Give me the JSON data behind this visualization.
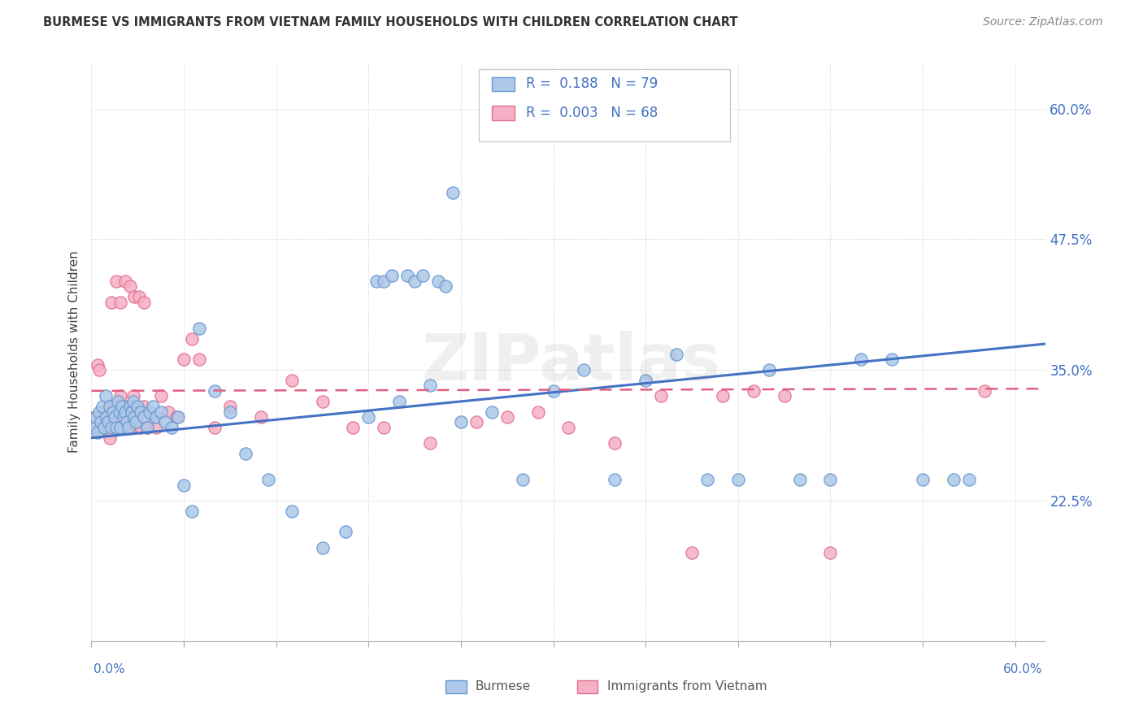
{
  "title": "BURMESE VS IMMIGRANTS FROM VIETNAM FAMILY HOUSEHOLDS WITH CHILDREN CORRELATION CHART",
  "source": "Source: ZipAtlas.com",
  "ylabel": "Family Households with Children",
  "xlim": [
    0.0,
    0.62
  ],
  "ylim": [
    0.09,
    0.645
  ],
  "burmese_color": "#adc8e8",
  "burmese_edge_color": "#6898d0",
  "vietnam_color": "#f5b0c5",
  "vietnam_edge_color": "#e07090",
  "burmese_line_color": "#4472c4",
  "vietnam_line_color": "#e06080",
  "legend_R_burmese": "0.188",
  "legend_N_burmese": "79",
  "legend_R_vietnam": "0.003",
  "legend_N_vietnam": "68",
  "legend_label_burmese": "Burmese",
  "legend_label_vietnam": "Immigrants from Vietnam",
  "burmese_trend_y0": 0.285,
  "burmese_trend_y1": 0.375,
  "vietnam_trend_y0": 0.33,
  "vietnam_trend_y1": 0.332,
  "ytick_vals": [
    0.225,
    0.35,
    0.475,
    0.6
  ],
  "ytick_labels": [
    "22.5%",
    "35.0%",
    "47.5%",
    "60.0%"
  ],
  "burmese_x": [
    0.002,
    0.003,
    0.004,
    0.005,
    0.006,
    0.007,
    0.008,
    0.009,
    0.01,
    0.011,
    0.012,
    0.013,
    0.014,
    0.015,
    0.016,
    0.017,
    0.018,
    0.019,
    0.02,
    0.021,
    0.022,
    0.023,
    0.024,
    0.025,
    0.026,
    0.027,
    0.028,
    0.029,
    0.03,
    0.032,
    0.034,
    0.036,
    0.038,
    0.04,
    0.042,
    0.045,
    0.048,
    0.052,
    0.056,
    0.06,
    0.065,
    0.07,
    0.08,
    0.09,
    0.1,
    0.115,
    0.13,
    0.15,
    0.165,
    0.18,
    0.2,
    0.22,
    0.24,
    0.26,
    0.28,
    0.3,
    0.32,
    0.34,
    0.36,
    0.38,
    0.4,
    0.42,
    0.44,
    0.46,
    0.48,
    0.5,
    0.52,
    0.54,
    0.56,
    0.57,
    0.185,
    0.19,
    0.195,
    0.205,
    0.21,
    0.215,
    0.225,
    0.23,
    0.235
  ],
  "burmese_y": [
    0.295,
    0.305,
    0.29,
    0.31,
    0.3,
    0.315,
    0.295,
    0.325,
    0.305,
    0.3,
    0.315,
    0.295,
    0.31,
    0.305,
    0.295,
    0.32,
    0.31,
    0.295,
    0.315,
    0.305,
    0.31,
    0.3,
    0.295,
    0.315,
    0.31,
    0.32,
    0.305,
    0.3,
    0.315,
    0.31,
    0.305,
    0.295,
    0.31,
    0.315,
    0.305,
    0.31,
    0.3,
    0.295,
    0.305,
    0.24,
    0.215,
    0.39,
    0.33,
    0.31,
    0.27,
    0.245,
    0.215,
    0.18,
    0.195,
    0.305,
    0.32,
    0.335,
    0.3,
    0.31,
    0.245,
    0.33,
    0.35,
    0.245,
    0.34,
    0.365,
    0.245,
    0.245,
    0.35,
    0.245,
    0.245,
    0.36,
    0.36,
    0.245,
    0.245,
    0.245,
    0.435,
    0.435,
    0.44,
    0.44,
    0.435,
    0.44,
    0.435,
    0.43,
    0.52
  ],
  "vietnam_x": [
    0.002,
    0.003,
    0.004,
    0.005,
    0.006,
    0.007,
    0.008,
    0.009,
    0.01,
    0.011,
    0.012,
    0.013,
    0.014,
    0.015,
    0.016,
    0.017,
    0.018,
    0.019,
    0.02,
    0.021,
    0.022,
    0.023,
    0.024,
    0.025,
    0.026,
    0.027,
    0.028,
    0.03,
    0.032,
    0.034,
    0.036,
    0.038,
    0.04,
    0.042,
    0.045,
    0.05,
    0.055,
    0.06,
    0.065,
    0.07,
    0.08,
    0.09,
    0.11,
    0.13,
    0.15,
    0.17,
    0.19,
    0.22,
    0.25,
    0.27,
    0.29,
    0.31,
    0.34,
    0.37,
    0.39,
    0.41,
    0.43,
    0.45,
    0.48,
    0.58,
    0.013,
    0.016,
    0.019,
    0.022,
    0.025,
    0.028,
    0.031,
    0.034
  ],
  "vietnam_y": [
    0.305,
    0.295,
    0.355,
    0.35,
    0.295,
    0.31,
    0.295,
    0.305,
    0.3,
    0.295,
    0.285,
    0.305,
    0.315,
    0.295,
    0.31,
    0.305,
    0.295,
    0.325,
    0.31,
    0.305,
    0.295,
    0.315,
    0.31,
    0.305,
    0.295,
    0.325,
    0.31,
    0.305,
    0.295,
    0.315,
    0.295,
    0.31,
    0.305,
    0.295,
    0.325,
    0.31,
    0.305,
    0.36,
    0.38,
    0.36,
    0.295,
    0.315,
    0.305,
    0.34,
    0.32,
    0.295,
    0.295,
    0.28,
    0.3,
    0.305,
    0.31,
    0.295,
    0.28,
    0.325,
    0.175,
    0.325,
    0.33,
    0.325,
    0.175,
    0.33,
    0.415,
    0.435,
    0.415,
    0.435,
    0.43,
    0.42,
    0.42,
    0.415
  ]
}
